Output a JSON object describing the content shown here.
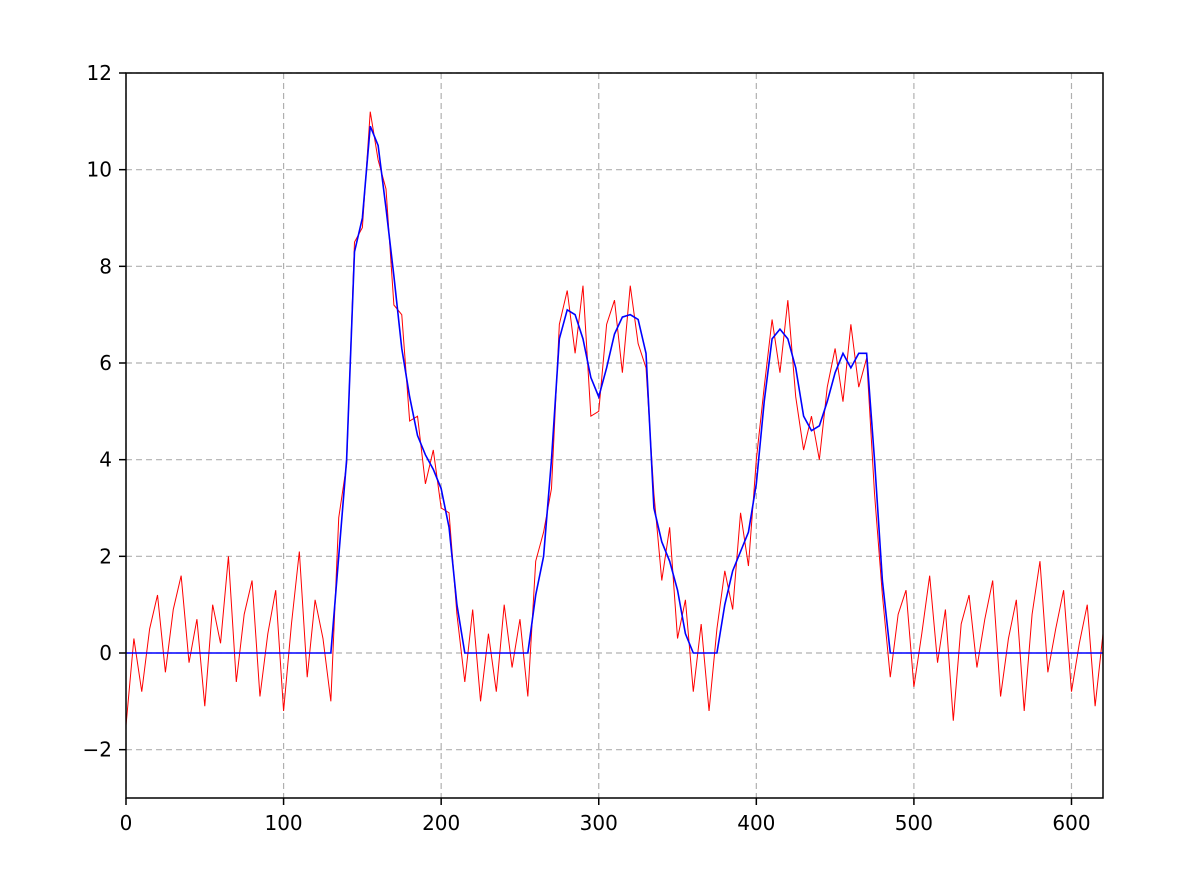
{
  "chart_data": {
    "type": "line",
    "x": [
      0,
      5,
      10,
      15,
      20,
      25,
      30,
      35,
      40,
      45,
      50,
      55,
      60,
      65,
      70,
      75,
      80,
      85,
      90,
      95,
      100,
      105,
      110,
      115,
      120,
      125,
      130,
      135,
      140,
      145,
      150,
      155,
      160,
      165,
      170,
      175,
      180,
      185,
      190,
      195,
      200,
      205,
      210,
      215,
      220,
      225,
      230,
      235,
      240,
      245,
      250,
      255,
      260,
      265,
      270,
      275,
      280,
      285,
      290,
      295,
      300,
      305,
      310,
      315,
      320,
      325,
      330,
      335,
      340,
      345,
      350,
      355,
      360,
      365,
      370,
      375,
      380,
      385,
      390,
      395,
      400,
      405,
      410,
      415,
      420,
      425,
      430,
      435,
      440,
      445,
      450,
      455,
      460,
      465,
      470,
      475,
      480,
      485,
      490,
      495,
      500,
      505,
      510,
      515,
      520,
      525,
      530,
      535,
      540,
      545,
      550,
      555,
      560,
      565,
      570,
      575,
      580,
      585,
      590,
      595,
      600,
      605,
      610,
      615,
      620
    ],
    "series": [
      {
        "color": "#ff0000",
        "values": [
          -1.5,
          0.3,
          -0.8,
          0.5,
          1.2,
          -0.4,
          0.9,
          1.6,
          -0.2,
          0.7,
          -1.1,
          1.0,
          0.2,
          2.0,
          -0.6,
          0.8,
          1.5,
          -0.9,
          0.4,
          1.3,
          -1.2,
          0.6,
          2.1,
          -0.5,
          1.1,
          0.3,
          -1.0,
          2.8,
          3.9,
          8.5,
          8.8,
          11.2,
          10.2,
          9.6,
          7.2,
          7.0,
          4.8,
          4.9,
          3.5,
          4.2,
          3.0,
          2.9,
          0.8,
          -0.6,
          0.9,
          -1.0,
          0.4,
          -0.8,
          1.0,
          -0.3,
          0.7,
          -0.9,
          1.9,
          2.5,
          3.4,
          6.8,
          7.5,
          6.2,
          7.6,
          4.9,
          5.0,
          6.8,
          7.3,
          5.8,
          7.6,
          6.4,
          5.9,
          3.3,
          1.5,
          2.6,
          0.3,
          1.1,
          -0.8,
          0.6,
          -1.2,
          0.5,
          1.7,
          0.9,
          2.9,
          1.8,
          4.0,
          5.5,
          6.9,
          5.8,
          7.3,
          5.3,
          4.2,
          4.9,
          4.0,
          5.5,
          6.3,
          5.2,
          6.8,
          5.5,
          6.1,
          3.3,
          1.2,
          -0.5,
          0.8,
          1.3,
          -0.7,
          0.4,
          1.6,
          -0.2,
          0.9,
          -1.4,
          0.6,
          1.2,
          -0.3,
          0.7,
          1.5,
          -0.9,
          0.3,
          1.1,
          -1.2,
          0.8,
          1.9,
          -0.4,
          0.5,
          1.3,
          -0.8,
          0.2,
          1.0,
          -1.1,
          0.4
        ]
      },
      {
        "color": "#0000ff",
        "values": [
          0,
          0,
          0,
          0,
          0,
          0,
          0,
          0,
          0,
          0,
          0,
          0,
          0,
          0,
          0,
          0,
          0,
          0,
          0,
          0,
          0,
          0,
          0,
          0,
          0,
          0,
          0,
          2.0,
          4.0,
          8.3,
          9.0,
          10.9,
          10.5,
          9.2,
          7.8,
          6.3,
          5.3,
          4.5,
          4.1,
          3.8,
          3.4,
          2.6,
          1.0,
          0,
          0,
          0,
          0,
          0,
          0,
          0,
          0,
          0,
          1.2,
          2.0,
          4.0,
          6.5,
          7.1,
          7.0,
          6.5,
          5.7,
          5.3,
          5.9,
          6.6,
          6.95,
          7.0,
          6.9,
          6.2,
          3.0,
          2.3,
          1.9,
          1.3,
          0.4,
          0,
          0,
          0,
          0,
          1.0,
          1.7,
          2.1,
          2.5,
          3.5,
          5.2,
          6.5,
          6.7,
          6.5,
          5.9,
          4.9,
          4.6,
          4.7,
          5.2,
          5.8,
          6.2,
          5.9,
          6.2,
          6.2,
          4.0,
          1.5,
          0,
          0,
          0,
          0,
          0,
          0,
          0,
          0,
          0,
          0,
          0,
          0,
          0,
          0,
          0,
          0,
          0,
          0,
          0,
          0,
          0,
          0,
          0,
          0,
          0,
          0,
          0,
          0
        ]
      }
    ],
    "xlim": [
      0,
      620
    ],
    "ylim": [
      -3,
      12
    ],
    "xticks": [
      0,
      100,
      200,
      300,
      400,
      500,
      600
    ],
    "yticks": [
      {
        "value": -2,
        "label": "−2"
      },
      0,
      2,
      4,
      6,
      8,
      10,
      12
    ],
    "grid": true
  }
}
